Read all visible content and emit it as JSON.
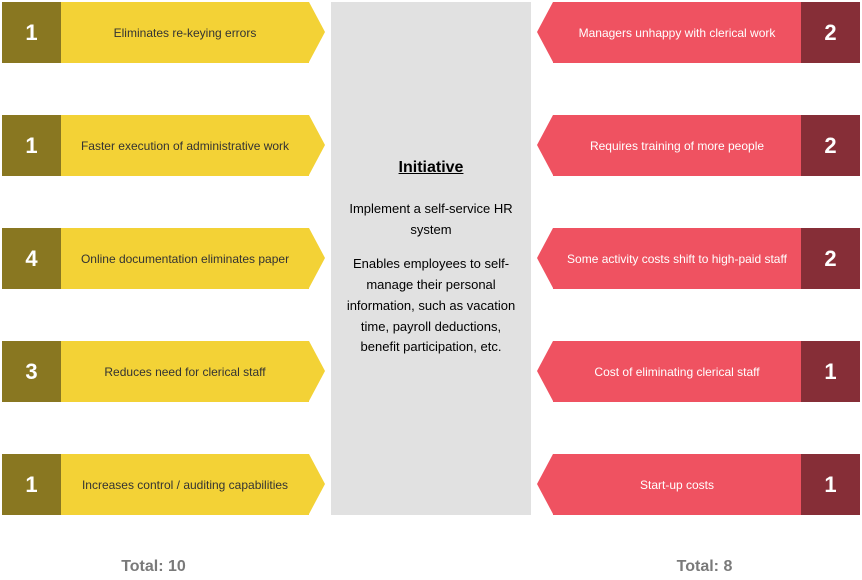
{
  "colors": {
    "pro_bg": "#f3d236",
    "pro_num_bg": "#897721",
    "pro_text": "#333333",
    "con_bg": "#ef5261",
    "con_num_bg": "#862e37",
    "con_text": "#ffffff",
    "center_bg": "#e1e1e1",
    "total_text": "#7a7a7a"
  },
  "center": {
    "title": "Initiative",
    "subtitle": "Implement a self-service HR system",
    "description": "Enables employees to self-manage their personal information, such as vacation time, payroll deductions, benefit participation, etc."
  },
  "pros": [
    {
      "num": "1",
      "label": "Eliminates re-keying errors"
    },
    {
      "num": "1",
      "label": "Faster execution of administrative work"
    },
    {
      "num": "4",
      "label": "Online documentation eliminates paper"
    },
    {
      "num": "3",
      "label": "Reduces need for clerical staff"
    },
    {
      "num": "1",
      "label": "Increases control / auditing capabilities"
    }
  ],
  "cons": [
    {
      "num": "2",
      "label": "Managers unhappy with clerical work"
    },
    {
      "num": "2",
      "label": "Requires training of more people"
    },
    {
      "num": "2",
      "label": "Some activity costs shift to high-paid staff"
    },
    {
      "num": "1",
      "label": "Cost of eliminating clerical staff"
    },
    {
      "num": "1",
      "label": "Start-up costs"
    }
  ],
  "totals": {
    "left_label": "Total: 10",
    "right_label": "Total: 8"
  }
}
